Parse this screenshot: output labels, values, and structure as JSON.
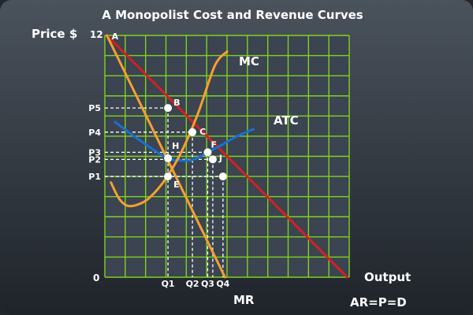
{
  "chart_data": {
    "type": "line",
    "title": "A Monopolist Cost and Revenue Curves",
    "ylabel": "Price $",
    "xlabel": "Output",
    "origin_label": "0",
    "y_top_label": "12",
    "xlim": [
      0,
      12
    ],
    "ylim": [
      0,
      12
    ],
    "grid": true,
    "y_ticks": [
      {
        "label": "P5",
        "value": 8.4
      },
      {
        "label": "P4",
        "value": 7.2
      },
      {
        "label": "P3",
        "value": 6.2
      },
      {
        "label": "P2",
        "value": 5.85
      },
      {
        "label": "P1",
        "value": 5.0
      }
    ],
    "x_ticks": [
      {
        "label": "Q1",
        "value": 3.1
      },
      {
        "label": "Q2",
        "value": 4.3
      },
      {
        "label": "Q3",
        "value": 5.05
      },
      {
        "label": "Q4",
        "value": 5.8
      }
    ],
    "series": [
      {
        "name": "MC",
        "color": "#f5a030",
        "x": [
          0.3,
          0.7,
          1.1,
          1.6,
          2.2,
          3.0,
          3.8,
          4.6,
          5.4,
          6.0
        ],
        "y": [
          4.7,
          3.9,
          3.55,
          3.6,
          3.95,
          4.9,
          6.3,
          8.2,
          10.5,
          11.2
        ]
      },
      {
        "name": "ATC",
        "color": "#1a6fd6",
        "x": [
          0.5,
          1.5,
          2.5,
          3.1,
          3.6,
          4.3,
          5.05,
          5.8,
          6.5,
          7.3
        ],
        "y": [
          7.7,
          6.95,
          6.25,
          5.9,
          5.8,
          5.82,
          6.2,
          6.6,
          7.0,
          7.35
        ]
      },
      {
        "name": "MR",
        "color": "#f5a030",
        "x": [
          0.1,
          5.9
        ],
        "y": [
          12.0,
          0.0
        ]
      },
      {
        "name": "AR=P=D",
        "color": "#d42020",
        "x": [
          0.1,
          11.9
        ],
        "y": [
          12.0,
          0.0
        ]
      }
    ],
    "points": [
      {
        "label": "A",
        "x": 0.1,
        "y": 12.0,
        "marker": false
      },
      {
        "label": "B",
        "x": 3.1,
        "y": 8.4,
        "marker": true
      },
      {
        "label": "C",
        "x": 4.3,
        "y": 7.2,
        "marker": true
      },
      {
        "label": "H",
        "x": 3.1,
        "y": 5.9,
        "marker": true
      },
      {
        "label": "F",
        "x": 5.05,
        "y": 6.2,
        "marker": true
      },
      {
        "label": "J",
        "x": 5.3,
        "y": 5.85,
        "marker": true
      },
      {
        "label": "E",
        "x": 3.1,
        "y": 5.0,
        "marker": true
      },
      {
        "label": "",
        "x": 5.8,
        "y": 5.0,
        "marker": true
      }
    ],
    "guides": [
      {
        "from": [
          0,
          8.4
        ],
        "to": [
          3.1,
          8.4
        ]
      },
      {
        "from": [
          0,
          7.2
        ],
        "to": [
          4.3,
          7.2
        ]
      },
      {
        "from": [
          0,
          6.2
        ],
        "to": [
          5.05,
          6.2
        ]
      },
      {
        "from": [
          0,
          5.85
        ],
        "to": [
          5.3,
          5.85
        ]
      },
      {
        "from": [
          0,
          5.0
        ],
        "to": [
          5.8,
          5.0
        ]
      },
      {
        "from": [
          3.1,
          8.4
        ],
        "to": [
          3.1,
          0
        ]
      },
      {
        "from": [
          4.3,
          7.2
        ],
        "to": [
          4.3,
          0
        ]
      },
      {
        "from": [
          5.05,
          6.2
        ],
        "to": [
          5.05,
          0
        ]
      },
      {
        "from": [
          5.3,
          5.85
        ],
        "to": [
          5.3,
          0
        ]
      },
      {
        "from": [
          5.8,
          5.0
        ],
        "to": [
          5.8,
          0
        ]
      }
    ]
  },
  "style": {
    "grid_color": "#7ed321",
    "plot_bg": "#3b4450",
    "page_bg_top": "#4a525c",
    "page_bg_bottom": "#1f242a",
    "guide_color": "#ffffff",
    "marker_fill": "#ffffff"
  }
}
